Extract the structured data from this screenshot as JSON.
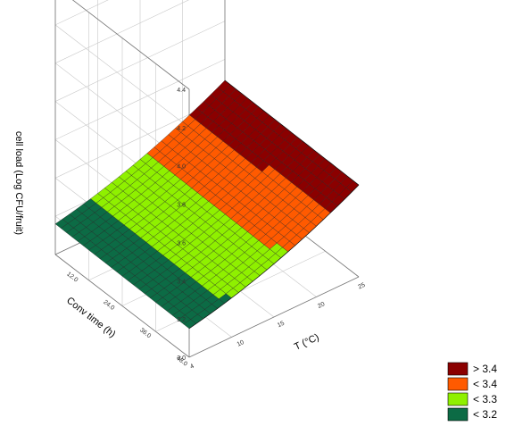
{
  "chart_data": {
    "type": "surface3d",
    "title": "",
    "axes": {
      "x": {
        "label": "Conv time (h)",
        "ticks": [
          12.0,
          24.0,
          36.0,
          48.0
        ]
      },
      "y": {
        "label": "T (°C)",
        "ticks": [
          4,
          10,
          15,
          20,
          25
        ]
      },
      "z": {
        "label": "cell load (Log CFU/fruit)",
        "ticks": [
          3.0,
          3.2,
          3.4,
          3.6,
          3.8,
          4.0,
          4.2,
          4.4
        ],
        "range": [
          3.0,
          4.4
        ]
      }
    },
    "x_range": [
      4.0,
      48.0
    ],
    "y_range": [
      4,
      25
    ],
    "surface": {
      "description_values": {
        "z_at_T4": 3.15,
        "z_at_T25": 3.48
      }
    },
    "legend": {
      "placement": "bottom-right",
      "entries": [
        {
          "label": "> 3.4",
          "color": "#8b0000"
        },
        {
          "label": "< 3.4",
          "color": "#ff5a00"
        },
        {
          "label": "< 3.3",
          "color": "#8ff000"
        },
        {
          "label": "< 3.2",
          "color": "#0c6b45"
        }
      ]
    },
    "grid": true
  }
}
